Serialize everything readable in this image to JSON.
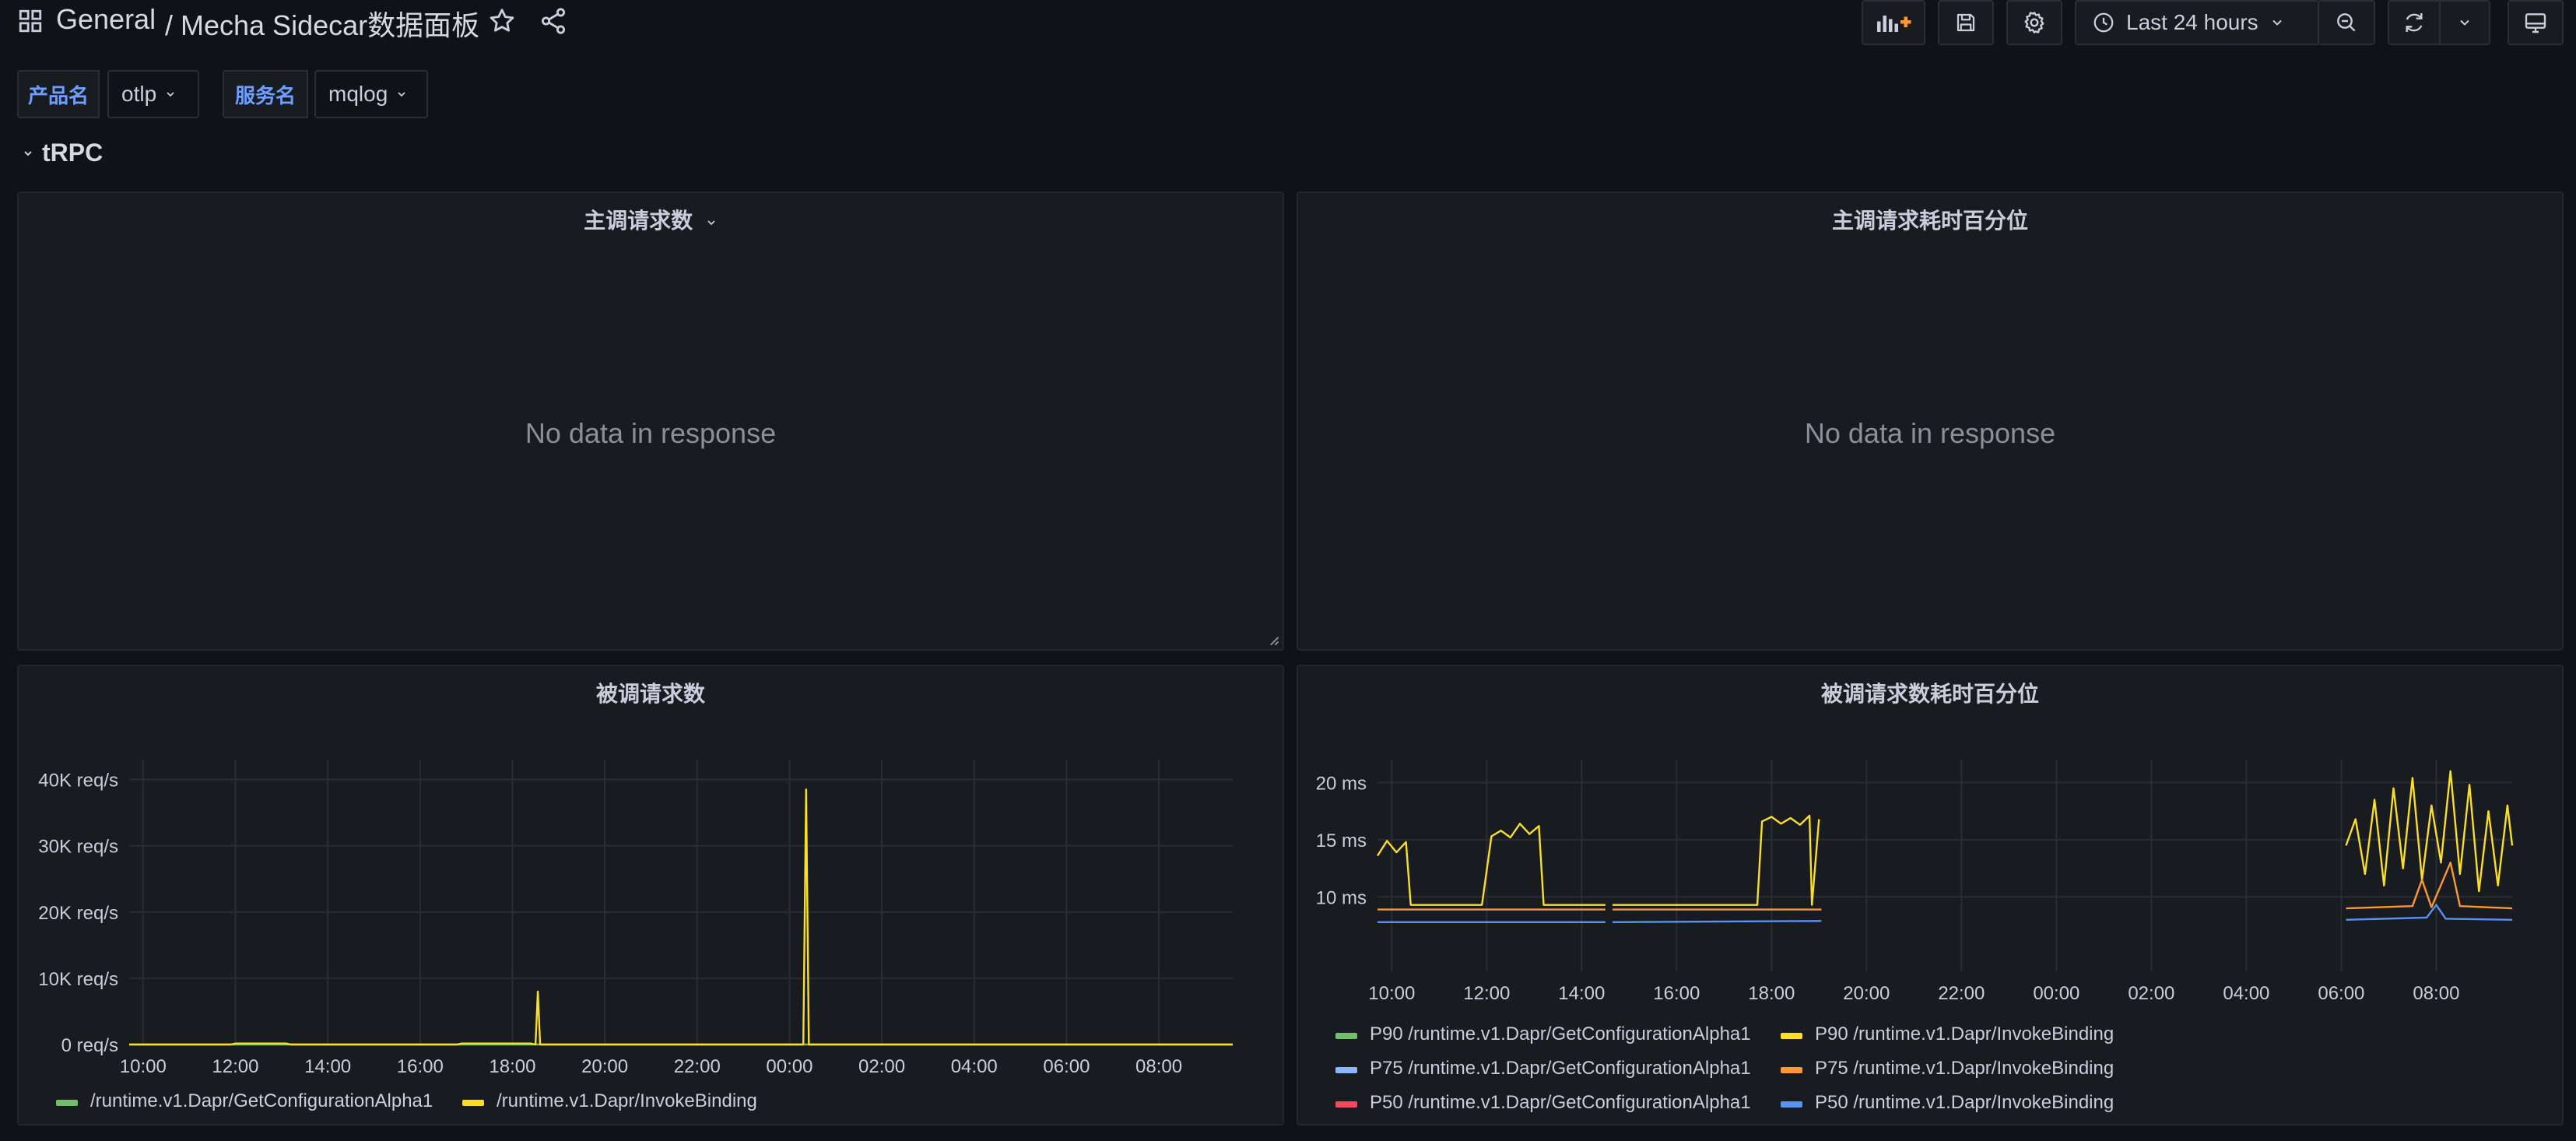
{
  "nav": {
    "breadcrumb_root": "General",
    "breadcrumb_title": "/ Mecha Sidecar数据面板",
    "time_range": "Last 24 hours"
  },
  "variables": [
    {
      "label": "产品名",
      "value": "otlp"
    },
    {
      "label": "服务名",
      "value": "mqlog"
    }
  ],
  "row": {
    "title": "tRPC"
  },
  "panels": {
    "caller_requests": {
      "title": "主调请求数",
      "message": "No data in response"
    },
    "caller_latency": {
      "title": "主调请求耗时百分位",
      "message": "No data in response"
    },
    "callee_requests": {
      "title": "被调请求数"
    },
    "callee_latency": {
      "title": "被调请求数耗时百分位"
    }
  },
  "colors": {
    "green": "#73bf69",
    "yellow": "#fade2a",
    "blue_light": "#8ab8ff",
    "orange": "#ff9830",
    "red": "#f2495c",
    "blue": "#5794f2"
  },
  "chart_data": [
    {
      "type": "line",
      "title": "被调请求数",
      "x_ticks": [
        "10:00",
        "12:00",
        "14:00",
        "16:00",
        "18:00",
        "20:00",
        "22:00",
        "00:00",
        "02:00",
        "04:00",
        "06:00",
        "08:00"
      ],
      "y_ticks": [
        "0 req/s",
        "10K req/s",
        "20K req/s",
        "30K req/s",
        "40K req/s"
      ],
      "ylim": [
        0,
        43000
      ],
      "xlim": [
        9.7,
        33.6
      ],
      "series": [
        {
          "name": "/runtime.v1.Dapr/GetConfigurationAlpha1",
          "color": "#73bf69",
          "points": [
            [
              9.7,
              0
            ],
            [
              33.6,
              0
            ]
          ]
        },
        {
          "name": "/runtime.v1.Dapr/InvokeBinding",
          "color": "#fade2a",
          "points": [
            [
              9.7,
              0
            ],
            [
              11.9,
              0
            ],
            [
              12.0,
              150
            ],
            [
              13.1,
              150
            ],
            [
              13.2,
              0
            ],
            [
              16.8,
              0
            ],
            [
              16.9,
              150
            ],
            [
              18.4,
              150
            ],
            [
              18.5,
              0
            ],
            [
              18.55,
              8000
            ],
            [
              18.6,
              0
            ],
            [
              24.3,
              0
            ],
            [
              24.36,
              38500
            ],
            [
              24.42,
              0
            ],
            [
              33.6,
              0
            ]
          ]
        }
      ]
    },
    {
      "type": "line",
      "title": "被调请求数耗时百分位",
      "x_ticks": [
        "10:00",
        "12:00",
        "14:00",
        "16:00",
        "18:00",
        "20:00",
        "22:00",
        "00:00",
        "02:00",
        "04:00",
        "06:00",
        "08:00"
      ],
      "y_ticks": [
        "10 ms",
        "15 ms",
        "20 ms"
      ],
      "ylim": [
        3.5,
        22
      ],
      "xlim": [
        9.7,
        33.6
      ],
      "series": [
        {
          "name": "P90 /runtime.v1.Dapr/GetConfigurationAlpha1",
          "color": "#73bf69",
          "points": []
        },
        {
          "name": "P90 /runtime.v1.Dapr/InvokeBinding",
          "color": "#fade2a",
          "points": [
            [
              9.7,
              13.6
            ],
            [
              9.9,
              14.9
            ],
            [
              10.1,
              13.9
            ],
            [
              10.3,
              14.8
            ],
            [
              10.4,
              9.3
            ],
            [
              11.9,
              9.3
            ],
            [
              12.1,
              15.3
            ],
            [
              12.3,
              15.8
            ],
            [
              12.5,
              15.2
            ],
            [
              12.7,
              16.4
            ],
            [
              12.9,
              15.5
            ],
            [
              13.1,
              16.2
            ],
            [
              13.2,
              9.3
            ],
            [
              14.5,
              9.3
            ],
            [
              14.55,
              null
            ],
            [
              14.65,
              9.3
            ],
            [
              17.7,
              9.3
            ],
            [
              17.8,
              16.6
            ],
            [
              18.0,
              17.0
            ],
            [
              18.2,
              16.4
            ],
            [
              18.4,
              16.9
            ],
            [
              18.6,
              16.3
            ],
            [
              18.8,
              17.1
            ],
            [
              18.85,
              9.3
            ],
            [
              19.0,
              16.8
            ],
            [
              19.05,
              null
            ],
            [
              30.0,
              null
            ],
            [
              30.1,
              14.5
            ],
            [
              30.3,
              16.8
            ],
            [
              30.5,
              12.0
            ],
            [
              30.7,
              18.5
            ],
            [
              30.9,
              11.0
            ],
            [
              31.1,
              19.5
            ],
            [
              31.3,
              12.5
            ],
            [
              31.5,
              20.4
            ],
            [
              31.7,
              11.5
            ],
            [
              31.9,
              18.0
            ],
            [
              32.1,
              13.0
            ],
            [
              32.3,
              21.0
            ],
            [
              32.5,
              12.0
            ],
            [
              32.7,
              19.8
            ],
            [
              32.9,
              10.5
            ],
            [
              33.1,
              17.5
            ],
            [
              33.3,
              11.0
            ],
            [
              33.5,
              18.0
            ],
            [
              33.6,
              14.5
            ]
          ]
        },
        {
          "name": "P75 /runtime.v1.Dapr/GetConfigurationAlpha1",
          "color": "#8ab8ff",
          "points": []
        },
        {
          "name": "P75 /runtime.v1.Dapr/InvokeBinding",
          "color": "#ff9830",
          "points": [
            [
              9.7,
              8.9
            ],
            [
              14.5,
              8.9
            ],
            [
              14.55,
              null
            ],
            [
              14.65,
              8.9
            ],
            [
              19.05,
              8.9
            ],
            [
              19.1,
              null
            ],
            [
              30.0,
              null
            ],
            [
              30.1,
              9.0
            ],
            [
              31.5,
              9.2
            ],
            [
              31.7,
              11.5
            ],
            [
              31.9,
              9.1
            ],
            [
              32.3,
              13.0
            ],
            [
              32.5,
              9.2
            ],
            [
              33.6,
              9.0
            ]
          ]
        },
        {
          "name": "P50 /runtime.v1.Dapr/GetConfigurationAlpha1",
          "color": "#f2495c",
          "points": []
        },
        {
          "name": "P50 /runtime.v1.Dapr/InvokeBinding",
          "color": "#5794f2",
          "points": [
            [
              9.7,
              7.8
            ],
            [
              14.5,
              7.8
            ],
            [
              14.55,
              null
            ],
            [
              14.65,
              7.8
            ],
            [
              19.05,
              7.9
            ],
            [
              19.1,
              null
            ],
            [
              30.0,
              null
            ],
            [
              30.1,
              8.0
            ],
            [
              31.8,
              8.2
            ],
            [
              32.0,
              9.3
            ],
            [
              32.2,
              8.1
            ],
            [
              33.6,
              8.0
            ]
          ]
        }
      ]
    }
  ]
}
